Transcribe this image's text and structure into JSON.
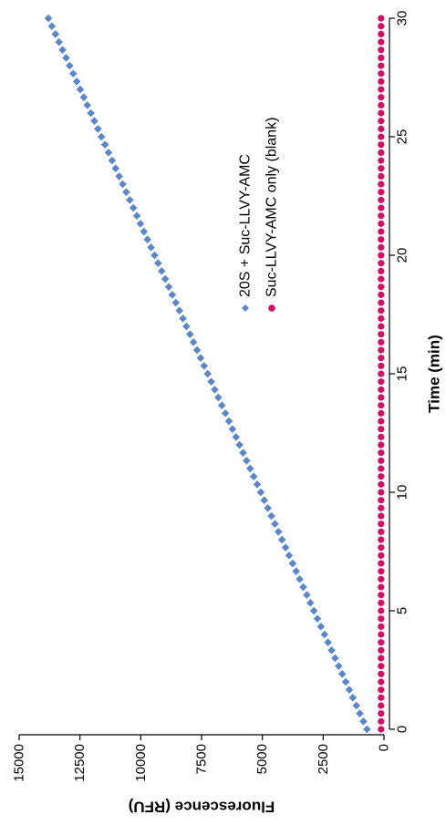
{
  "chart_data": {
    "type": "scatter",
    "rotation": "figure rotated 90 degrees clockwise (x axis runs top-to-bottom in the picture)",
    "xlabel": "Time (min)",
    "ylabel": "Fluorescence (RFU)",
    "xlim": [
      0,
      30
    ],
    "ylim": [
      0,
      15000
    ],
    "x_ticks": [
      0,
      5,
      10,
      15,
      20,
      25,
      30
    ],
    "y_ticks": [
      0,
      2500,
      5000,
      7500,
      10000,
      12500,
      15000
    ],
    "grid": false,
    "legend_position": "upper-center",
    "x_step": 0.3333,
    "series": [
      {
        "name": "20S + Suc-LLVY-AMC",
        "marker": "diamond",
        "color": "#5b87c9",
        "start": [
          0,
          700
        ],
        "end": [
          30,
          13800
        ]
      },
      {
        "name": "Suc-LLVY-AMC only (blank)",
        "marker": "circle",
        "color": "#cc1166",
        "start": [
          0,
          120
        ],
        "end": [
          30,
          120
        ]
      }
    ]
  }
}
